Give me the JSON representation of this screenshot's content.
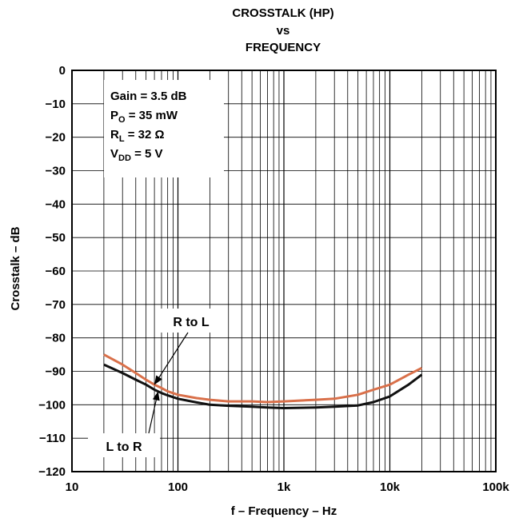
{
  "chart_data": {
    "type": "line",
    "title": [
      "CROSSTALK (HP)",
      "vs",
      "FREQUENCY"
    ],
    "xlabel": "f – Frequency – Hz",
    "ylabel": "Crosstalk – dB",
    "x_scale": "log",
    "xlim": [
      10,
      100000
    ],
    "ylim": [
      -120,
      0
    ],
    "x_ticks": [
      {
        "value": 10,
        "label": "10"
      },
      {
        "value": 100,
        "label": "100"
      },
      {
        "value": 1000,
        "label": "1k"
      },
      {
        "value": 10000,
        "label": "10k"
      },
      {
        "value": 100000,
        "label": "100k"
      }
    ],
    "y_ticks": [
      {
        "value": 0,
        "label": "0"
      },
      {
        "value": -10,
        "label": "−10"
      },
      {
        "value": -20,
        "label": "−20"
      },
      {
        "value": -30,
        "label": "−30"
      },
      {
        "value": -40,
        "label": "−40"
      },
      {
        "value": -50,
        "label": "−50"
      },
      {
        "value": -60,
        "label": "−60"
      },
      {
        "value": -70,
        "label": "−70"
      },
      {
        "value": -80,
        "label": "−80"
      },
      {
        "value": -90,
        "label": "−90"
      },
      {
        "value": -100,
        "label": "−100"
      },
      {
        "value": -110,
        "label": "−110"
      },
      {
        "value": -120,
        "label": "−120"
      }
    ],
    "grid": true,
    "conditions": [
      {
        "main": "Gain = 3.5 dB",
        "sub": "",
        "tail": ""
      },
      {
        "main": "P",
        "sub": "O",
        "tail": " = 35 mW"
      },
      {
        "main": "R",
        "sub": "L",
        "tail": " = 32 Ω"
      },
      {
        "main": "V",
        "sub": "DD",
        "tail": " = 5 V"
      }
    ],
    "series": [
      {
        "name": "R to L",
        "color": "#d9704a",
        "x": [
          20,
          30,
          40,
          50,
          60,
          70,
          80,
          100,
          150,
          200,
          300,
          500,
          700,
          1000,
          2000,
          3000,
          5000,
          7000,
          10000,
          15000,
          20000
        ],
        "y": [
          -85,
          -88,
          -90.5,
          -92.5,
          -94,
          -95,
          -96,
          -97,
          -98,
          -98.5,
          -99,
          -99,
          -99.2,
          -99,
          -98.5,
          -98.2,
          -97,
          -95.5,
          -94,
          -91,
          -89
        ]
      },
      {
        "name": "L to R",
        "color": "#111111",
        "x": [
          20,
          30,
          40,
          50,
          60,
          70,
          80,
          100,
          150,
          200,
          300,
          500,
          700,
          1000,
          2000,
          3000,
          5000,
          7000,
          10000,
          15000,
          20000
        ],
        "y": [
          -88,
          -90.5,
          -92.5,
          -94,
          -95.5,
          -96.5,
          -97.2,
          -98.2,
          -99.3,
          -100,
          -100.3,
          -100.6,
          -100.8,
          -101,
          -100.8,
          -100.6,
          -100.2,
          -99.2,
          -97.5,
          -94,
          -91
        ]
      }
    ],
    "annotations": [
      {
        "text": "R to L",
        "series": "R to L",
        "at_x": 60
      },
      {
        "text": "L to R",
        "series": "L to R",
        "at_x": 65
      }
    ]
  }
}
